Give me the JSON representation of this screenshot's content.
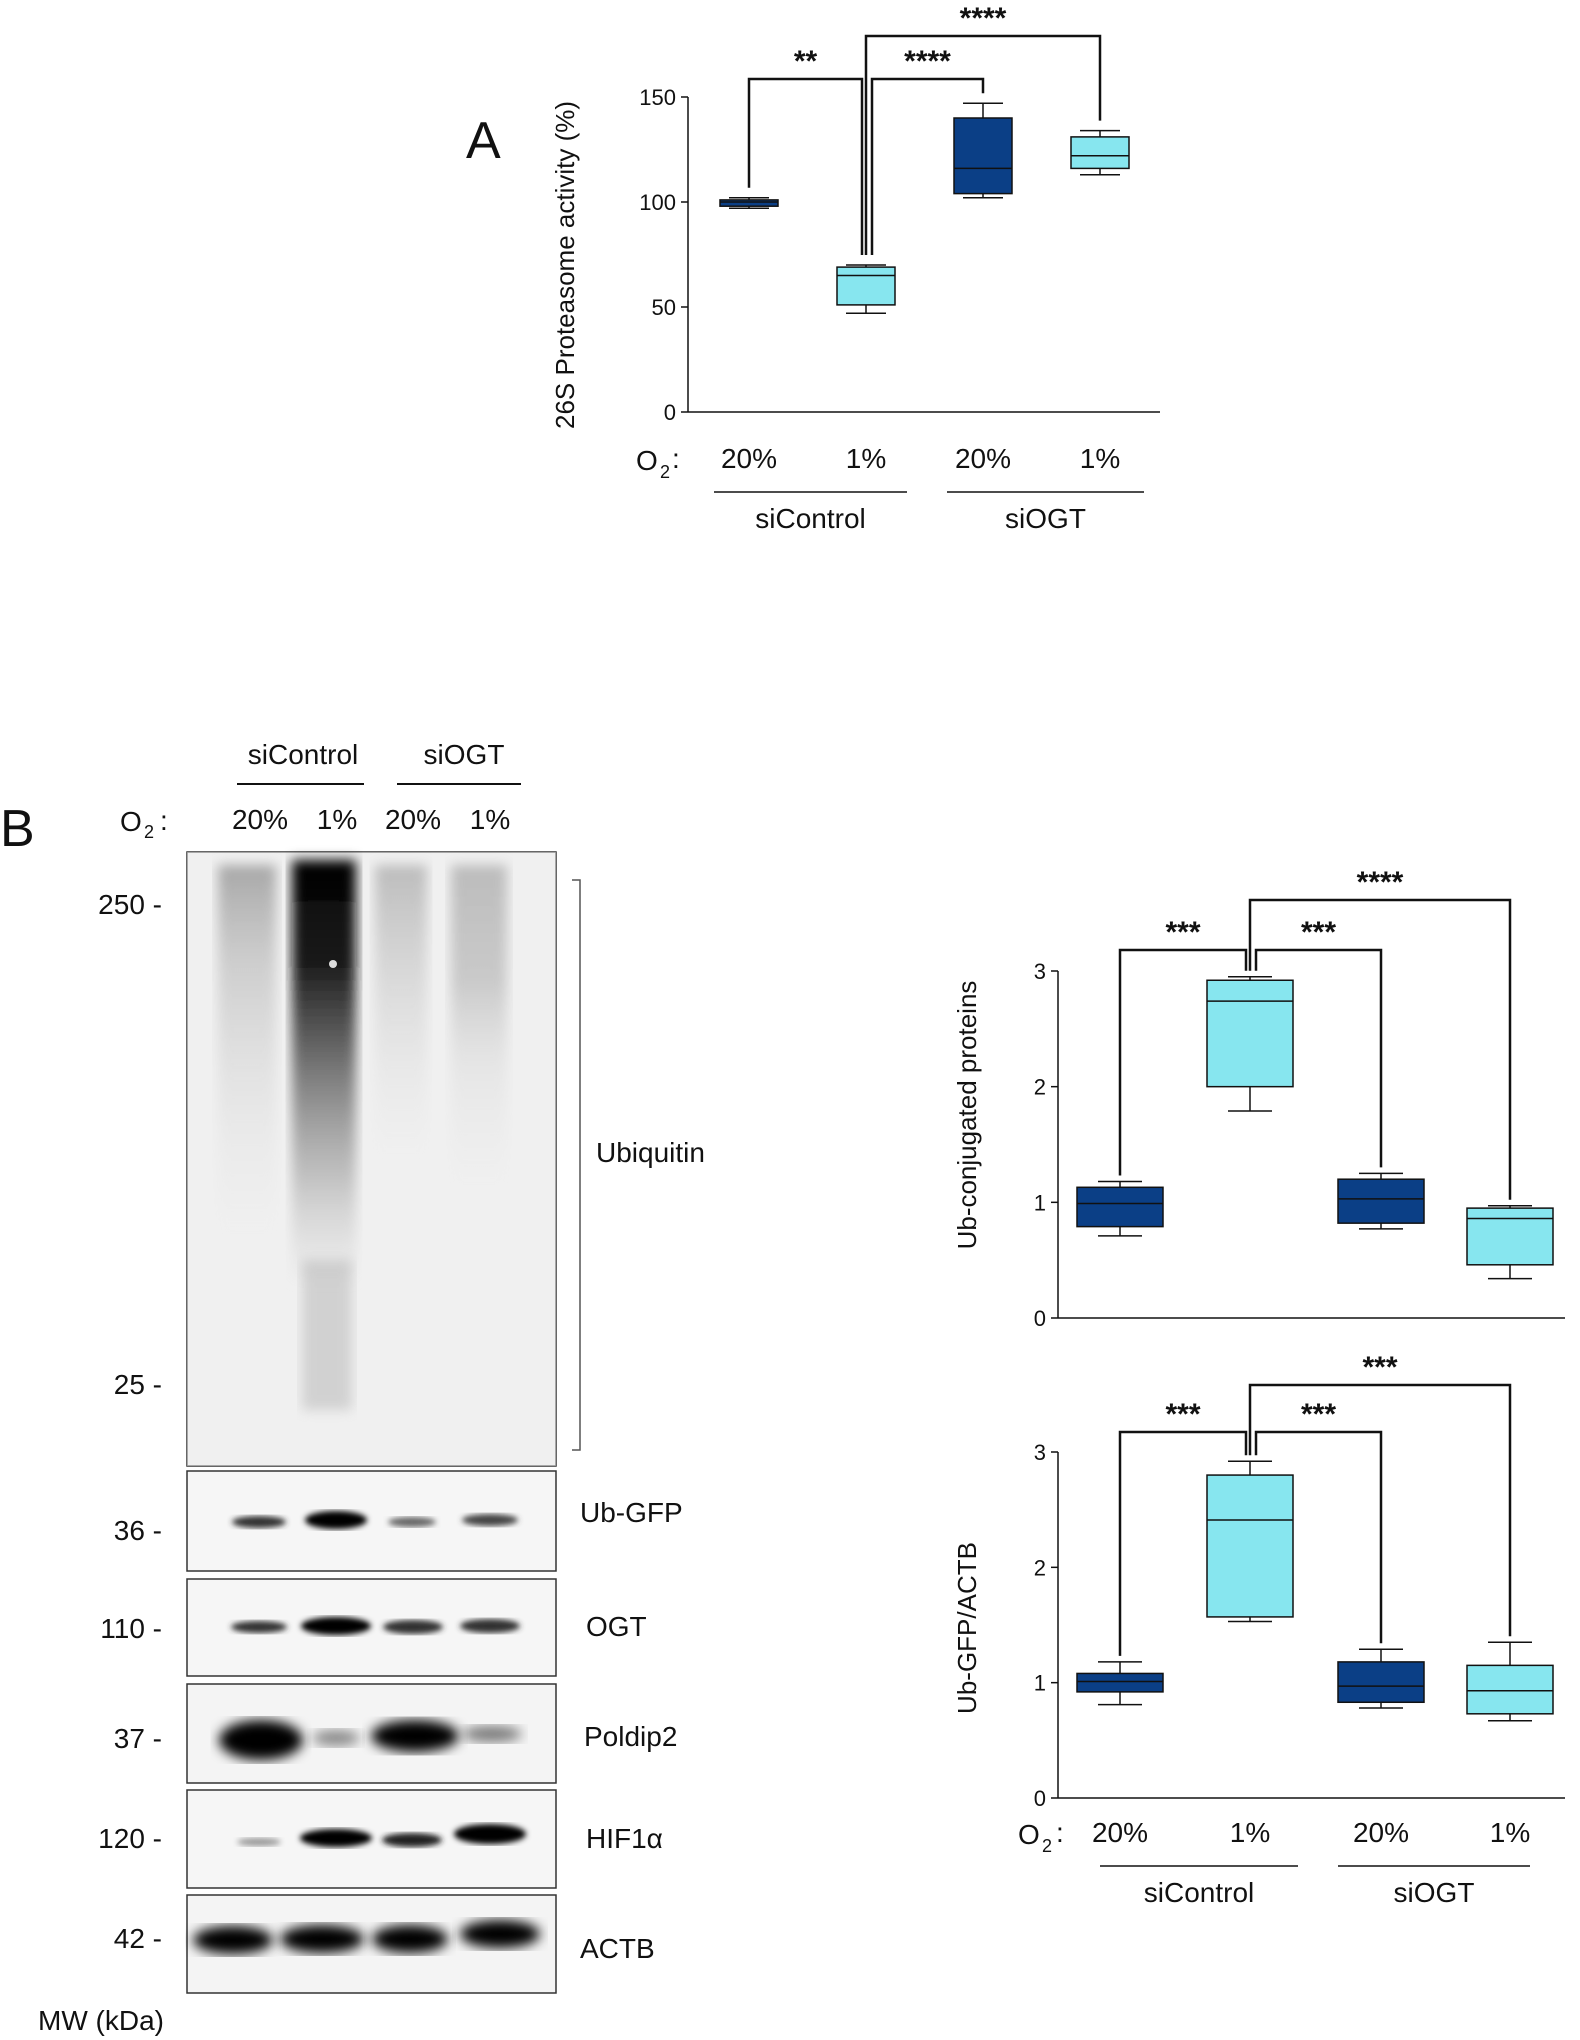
{
  "colors": {
    "dark": "#0b3f86",
    "light": "#87e6ef",
    "line": "#111111"
  },
  "panelA": {
    "label": "A",
    "o2_label": "O",
    "o2_sub": "2",
    "o2_colon": ":",
    "groups": [
      "siControl",
      "siOGT"
    ],
    "chart_data": {
      "type": "box",
      "ylabel": "26S Proteasome activity (%)",
      "ylim": [
        0,
        150
      ],
      "yticks": [
        0,
        50,
        100,
        150
      ],
      "categories": [
        "20%",
        "1%",
        "20%",
        "1%"
      ],
      "groups": [
        "siControl",
        "siControl",
        "siOGT",
        "siOGT"
      ],
      "boxes": [
        {
          "min": 97,
          "q1": 98,
          "median": 100,
          "q3": 101,
          "max": 102,
          "color": "dark"
        },
        {
          "min": 47,
          "q1": 51,
          "median": 65,
          "q3": 69,
          "max": 70,
          "color": "light"
        },
        {
          "min": 102,
          "q1": 104,
          "median": 116,
          "q3": 140,
          "max": 147,
          "color": "dark"
        },
        {
          "min": 113,
          "q1": 116,
          "median": 122,
          "q3": 131,
          "max": 134,
          "color": "light"
        }
      ],
      "significance": [
        {
          "from": 0,
          "to": 1,
          "label": "**"
        },
        {
          "from": 1,
          "to": 2,
          "label": "****"
        },
        {
          "from": 1,
          "to": 3,
          "label": "****"
        }
      ]
    }
  },
  "panelB": {
    "label": "B",
    "o2_label": "O",
    "o2_sub": "2",
    "o2_colon": ":",
    "groups": [
      "siControl",
      "siOGT"
    ],
    "conditions": [
      "20%",
      "1%",
      "20%",
      "1%"
    ],
    "mw_label": "MW (kDa)",
    "blots": [
      {
        "name": "Ubiquitin",
        "markers": [
          "250 -",
          "25 -"
        ]
      },
      {
        "name": "Ub-GFP",
        "markers": [
          "36 -"
        ]
      },
      {
        "name": "OGT",
        "markers": [
          "110 -"
        ]
      },
      {
        "name": "Poldip2",
        "markers": [
          "37 -"
        ]
      },
      {
        "name": "HIF1α",
        "markers": [
          "120 -"
        ]
      },
      {
        "name": "ACTB",
        "markers": [
          "42 -"
        ]
      }
    ]
  },
  "chart_data": [
    {
      "type": "box",
      "ylabel": "Ub-conjugated proteins",
      "ylim": [
        0,
        3
      ],
      "yticks": [
        0,
        1,
        2,
        3
      ],
      "categories": [
        "20%",
        "1%",
        "20%",
        "1%"
      ],
      "groups": [
        "siControl",
        "siControl",
        "siOGT",
        "siOGT"
      ],
      "boxes": [
        {
          "min": 0.71,
          "q1": 0.79,
          "median": 0.99,
          "q3": 1.13,
          "max": 1.18,
          "color": "dark"
        },
        {
          "min": 1.79,
          "q1": 2.0,
          "median": 2.74,
          "q3": 2.92,
          "max": 2.95,
          "color": "light"
        },
        {
          "min": 0.77,
          "q1": 0.82,
          "median": 1.03,
          "q3": 1.2,
          "max": 1.25,
          "color": "dark"
        },
        {
          "min": 0.34,
          "q1": 0.46,
          "median": 0.86,
          "q3": 0.95,
          "max": 0.97,
          "color": "light"
        }
      ],
      "significance": [
        {
          "from": 0,
          "to": 1,
          "label": "***"
        },
        {
          "from": 1,
          "to": 2,
          "label": "***"
        },
        {
          "from": 1,
          "to": 3,
          "label": "****"
        }
      ]
    },
    {
      "type": "box",
      "ylabel": "Ub-GFP/ACTB",
      "ylim": [
        0,
        3
      ],
      "yticks": [
        0,
        1,
        2,
        3
      ],
      "categories": [
        "20%",
        "1%",
        "20%",
        "1%"
      ],
      "groups": [
        "siControl",
        "siControl",
        "siOGT",
        "siOGT"
      ],
      "boxes": [
        {
          "min": 0.81,
          "q1": 0.92,
          "median": 1.01,
          "q3": 1.08,
          "max": 1.18,
          "color": "dark"
        },
        {
          "min": 1.53,
          "q1": 1.57,
          "median": 2.41,
          "q3": 2.8,
          "max": 2.92,
          "color": "light"
        },
        {
          "min": 0.78,
          "q1": 0.83,
          "median": 0.97,
          "q3": 1.18,
          "max": 1.29,
          "color": "dark"
        },
        {
          "min": 0.67,
          "q1": 0.73,
          "median": 0.93,
          "q3": 1.15,
          "max": 1.35,
          "color": "light"
        }
      ],
      "significance": [
        {
          "from": 0,
          "to": 1,
          "label": "***"
        },
        {
          "from": 1,
          "to": 2,
          "label": "***"
        },
        {
          "from": 1,
          "to": 3,
          "label": "***"
        }
      ]
    }
  ]
}
